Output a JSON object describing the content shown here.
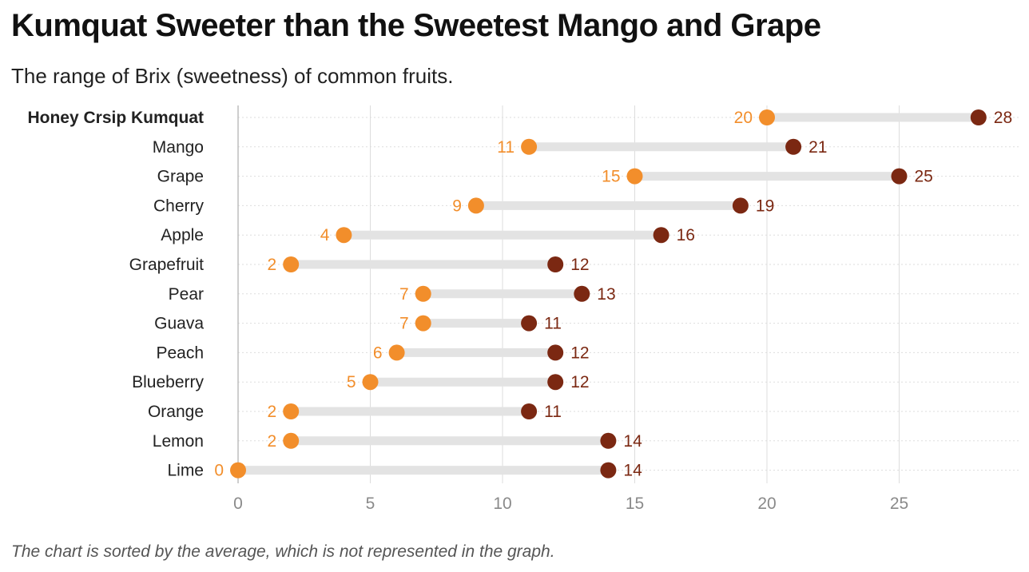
{
  "title": "Kumquat Sweeter than the Sweetest Mango and Grape",
  "subtitle": "The range of Brix (sweetness) of common fruits.",
  "note": "The chart is sorted by the average, which is not represented in the graph.",
  "colors": {
    "min_dot": "#f28e2b",
    "max_dot": "#7b2812",
    "bar": "#e3e3e3",
    "grid": "#dddddd",
    "axis": "#bdbdbd",
    "tick_text": "#8a8a8a"
  },
  "chart_data": {
    "type": "dumbbell",
    "xlabel": "",
    "ylabel": "",
    "xlim": [
      0,
      29
    ],
    "xticks": [
      0,
      5,
      10,
      15,
      20,
      25
    ],
    "grid": true,
    "categories": [
      "Honey Crsip Kumquat",
      "Mango",
      "Grape",
      "Cherry",
      "Apple",
      "Grapefruit",
      "Pear",
      "Guava",
      "Peach",
      "Blueberry",
      "Orange",
      "Lemon",
      "Lime"
    ],
    "highlighted_category": "Honey Crsip Kumquat",
    "series": [
      {
        "values": [
          20,
          11,
          15,
          9,
          4,
          2,
          7,
          7,
          6,
          5,
          2,
          2,
          0
        ]
      },
      {
        "values": [
          28,
          21,
          25,
          19,
          16,
          12,
          13,
          11,
          12,
          12,
          11,
          14,
          14
        ]
      }
    ]
  }
}
